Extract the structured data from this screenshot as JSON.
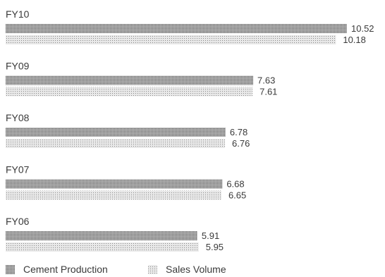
{
  "chart_data": {
    "type": "bar",
    "orientation": "horizontal",
    "categories": [
      "FY10",
      "FY09",
      "FY08",
      "FY07",
      "FY06"
    ],
    "series": [
      {
        "name": "Cement Production",
        "values": [
          10.52,
          7.63,
          6.78,
          6.68,
          5.91
        ],
        "color": "#8c8c8c"
      },
      {
        "name": "Sales Volume",
        "values": [
          10.18,
          7.61,
          6.76,
          6.65,
          5.95
        ],
        "color": "#c9c9c9"
      }
    ],
    "value_labels": {
      "Cement Production": [
        "10.52",
        "7.63",
        "6.78",
        "6.68",
        "5.91"
      ],
      "Sales Volume": [
        "10.18",
        "7.61",
        "6.76",
        "6.65",
        "5.95"
      ]
    },
    "xlim": [
      0,
      10.52
    ],
    "grid": false,
    "legend_position": "bottom-left",
    "title": "",
    "xlabel": "",
    "ylabel": ""
  }
}
